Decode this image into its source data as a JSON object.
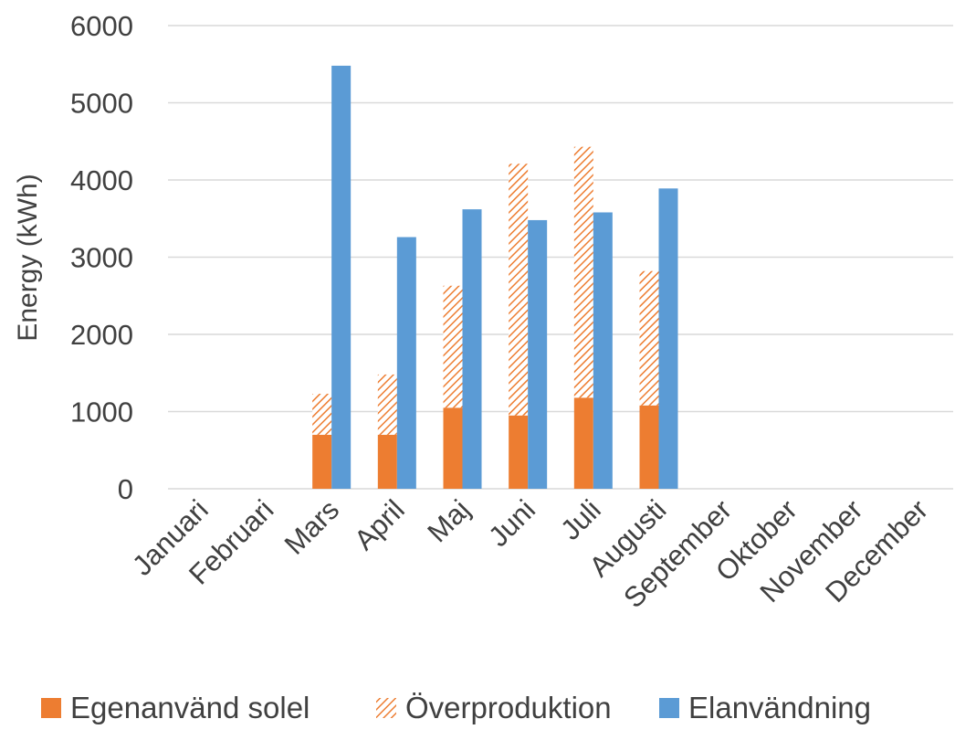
{
  "chart_data": {
    "type": "bar",
    "stacked_series": [
      "Egenanvänd solel",
      "Överproduktion"
    ],
    "categories": [
      "Januari",
      "Februari",
      "Mars",
      "April",
      "Maj",
      "Juni",
      "Juli",
      "Augusti",
      "September",
      "Oktober",
      "November",
      "December"
    ],
    "series": [
      {
        "name": "Egenanvänd solel",
        "color": "#ED7D31",
        "pattern": "solid",
        "values": [
          0,
          0,
          700,
          700,
          1050,
          950,
          1180,
          1080,
          0,
          0,
          0,
          0
        ]
      },
      {
        "name": "Överproduktion",
        "color": "#ED7D31",
        "pattern": "diagonal-hatch",
        "values": [
          0,
          0,
          530,
          780,
          1580,
          3260,
          3250,
          1740,
          0,
          0,
          0,
          0
        ]
      },
      {
        "name": "Elanvändning",
        "color": "#5B9BD5",
        "pattern": "solid",
        "values": [
          0,
          0,
          5480,
          3260,
          3620,
          3480,
          3580,
          3890,
          0,
          0,
          0,
          0
        ]
      }
    ],
    "ylabel": "Energy (kWh)",
    "xlabel": "",
    "ylim": [
      0,
      6000
    ],
    "yticks": [
      "0",
      "1000",
      "2000",
      "3000",
      "4000",
      "5000",
      "6000"
    ],
    "grid": "horizontal",
    "legend_position": "bottom"
  }
}
